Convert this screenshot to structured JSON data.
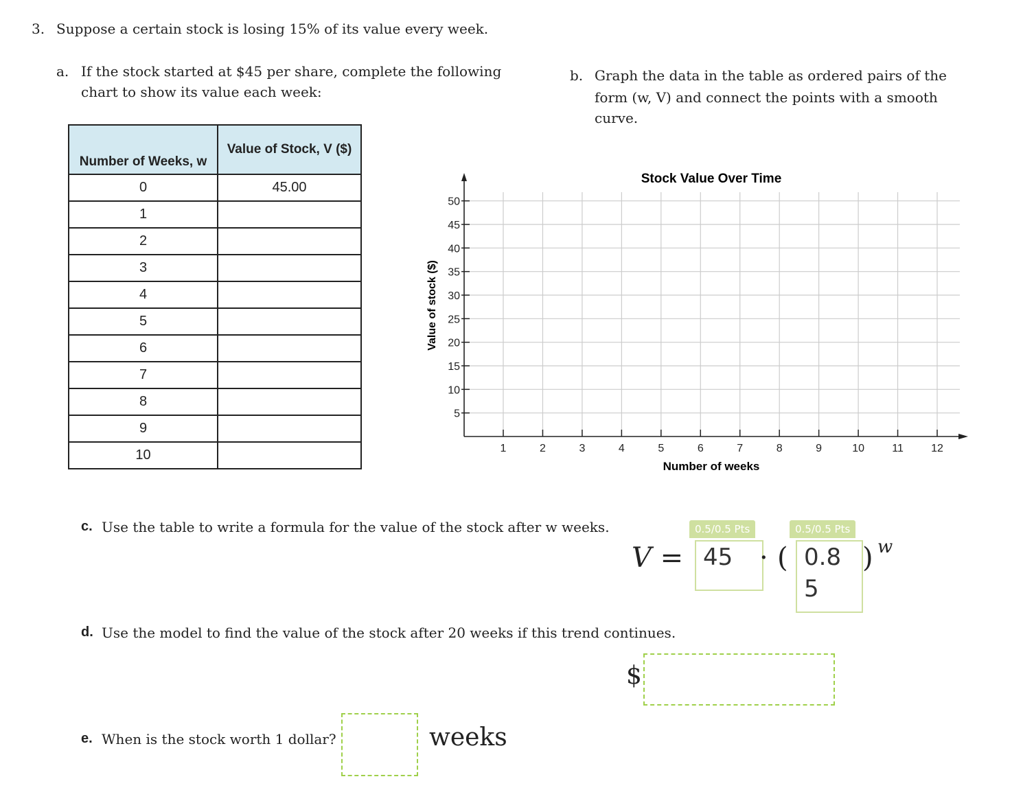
{
  "question": {
    "number": "3.",
    "text": "Suppose a certain stock is losing 15% of its value every week."
  },
  "part_a": {
    "label": "a.",
    "line1": "If the stock started at $45 per share, complete the following",
    "line2": "chart to show its value each week:"
  },
  "part_b": {
    "label": "b.",
    "line1": "Graph the data in the table as ordered pairs of the",
    "line2": "form (w, V) and connect the points with a smooth",
    "line3": "curve."
  },
  "table": {
    "headers": [
      "Number of Weeks, w",
      "Value of Stock, V ($)"
    ],
    "rows": [
      [
        "0",
        "45.00"
      ],
      [
        "1",
        ""
      ],
      [
        "2",
        ""
      ],
      [
        "3",
        ""
      ],
      [
        "4",
        ""
      ],
      [
        "5",
        ""
      ],
      [
        "6",
        ""
      ],
      [
        "7",
        ""
      ],
      [
        "8",
        ""
      ],
      [
        "9",
        ""
      ],
      [
        "10",
        ""
      ]
    ]
  },
  "chart_data": {
    "type": "scatter",
    "title": "Stock Value Over Time",
    "xlabel": "Number of weeks",
    "ylabel": "Value of stock ($)",
    "xlim": [
      0,
      12
    ],
    "ylim": [
      0,
      50
    ],
    "xticks": [
      1,
      2,
      3,
      4,
      5,
      6,
      7,
      8,
      9,
      10,
      11,
      12
    ],
    "yticks": [
      5,
      10,
      15,
      20,
      25,
      30,
      35,
      40,
      45,
      50
    ],
    "grid": true,
    "series": []
  },
  "part_c": {
    "label": "c.",
    "text": "Use the table to write a formula for the value of the stock after w weeks.",
    "lhs": "V =",
    "dot": "·",
    "open": "(",
    "close": ")",
    "exponent": "w",
    "answer1": {
      "value": "45",
      "score": "0.5/0.5 Pts"
    },
    "answer2": {
      "value": "0.85",
      "score": "0.5/0.5 Pts"
    }
  },
  "part_d": {
    "label": "d.",
    "text": "Use the model to find the value of the stock after 20 weeks if this trend continues.",
    "currency": "$",
    "answer": ""
  },
  "part_e": {
    "label": "e.",
    "text": "When is the stock worth 1 dollar?",
    "answer": "",
    "unit": "weeks"
  },
  "colors": {
    "header_bg": "#d3e9f1",
    "score_green": "#cfe0a0",
    "dashed_green": "#9fd04a"
  }
}
